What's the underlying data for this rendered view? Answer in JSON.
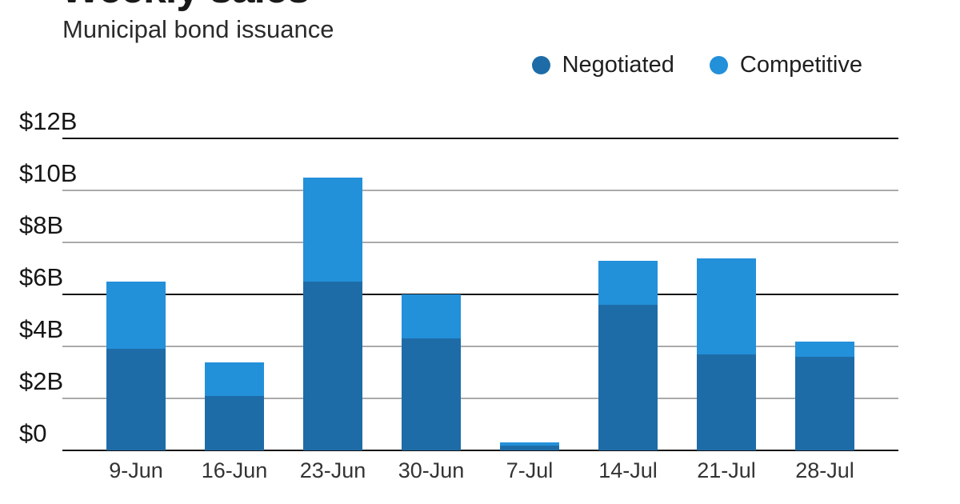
{
  "header": {
    "title": "Weekly sales",
    "subtitle": "Municipal bond issuance"
  },
  "legend": [
    {
      "label": "Negotiated",
      "color": "#1e6ca7"
    },
    {
      "label": "Competitive",
      "color": "#2390da"
    }
  ],
  "chart_data": {
    "type": "bar",
    "stacked": true,
    "title": "Weekly sales",
    "subtitle": "Municipal bond issuance",
    "categories": [
      "9-Jun",
      "16-Jun",
      "23-Jun",
      "30-Jun",
      "7-Jul",
      "14-Jul",
      "21-Jul",
      "28-Jul"
    ],
    "series": [
      {
        "name": "Negotiated",
        "color": "#1e6ca7",
        "values": [
          3.9,
          2.1,
          6.5,
          4.3,
          0.2,
          5.6,
          3.7,
          3.6
        ]
      },
      {
        "name": "Competitive",
        "color": "#2390da",
        "values": [
          2.6,
          1.3,
          4.0,
          1.7,
          0.1,
          1.7,
          3.7,
          0.6
        ]
      }
    ],
    "totals": [
      6.5,
      3.4,
      10.5,
      6.0,
      0.3,
      7.3,
      7.4,
      4.2
    ],
    "xlabel": "",
    "ylabel": "",
    "ylim": [
      0,
      12
    ],
    "yticks": [
      {
        "value": 12,
        "label": "$12B"
      },
      {
        "value": 10,
        "label": "$10B"
      },
      {
        "value": 8,
        "label": "$8B"
      },
      {
        "value": 6,
        "label": "$6B"
      },
      {
        "value": 4,
        "label": "$4B"
      },
      {
        "value": 2,
        "label": "$2B"
      },
      {
        "value": 0,
        "label": "$0"
      }
    ],
    "grid": "horizontal",
    "emphasized_gridlines": [
      12,
      6,
      0
    ],
    "legend_position": "top-right"
  }
}
